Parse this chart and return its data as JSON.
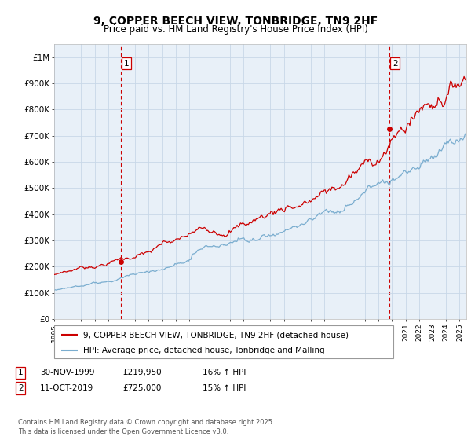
{
  "title": "9, COPPER BEECH VIEW, TONBRIDGE, TN9 2HF",
  "subtitle": "Price paid vs. HM Land Registry's House Price Index (HPI)",
  "ylim": [
    0,
    1050000
  ],
  "yticks": [
    0,
    100000,
    200000,
    300000,
    400000,
    500000,
    600000,
    700000,
    800000,
    900000,
    1000000
  ],
  "ytick_labels": [
    "£0",
    "£100K",
    "£200K",
    "£300K",
    "£400K",
    "£500K",
    "£600K",
    "£700K",
    "£800K",
    "£900K",
    "£1M"
  ],
  "x_start_year": 1995,
  "x_end_year": 2025,
  "sale1_date": 1999.917,
  "sale1_price": 219950,
  "sale2_date": 2019.79,
  "sale2_price": 725000,
  "red_line_color": "#cc0000",
  "blue_line_color": "#7aadcf",
  "sale_marker_color": "#cc0000",
  "dashed_line_color": "#cc0000",
  "grid_color": "#c8d8e8",
  "plot_bg_color": "#e8f0f8",
  "background_color": "#ffffff",
  "legend_label_red": "9, COPPER BEECH VIEW, TONBRIDGE, TN9 2HF (detached house)",
  "legend_label_blue": "HPI: Average price, detached house, Tonbridge and Malling",
  "footer": "Contains HM Land Registry data © Crown copyright and database right 2025.\nThis data is licensed under the Open Government Licence v3.0.",
  "title_fontsize": 10,
  "subtitle_fontsize": 8.5,
  "axis_fontsize": 7.5,
  "legend_fontsize": 7.5
}
